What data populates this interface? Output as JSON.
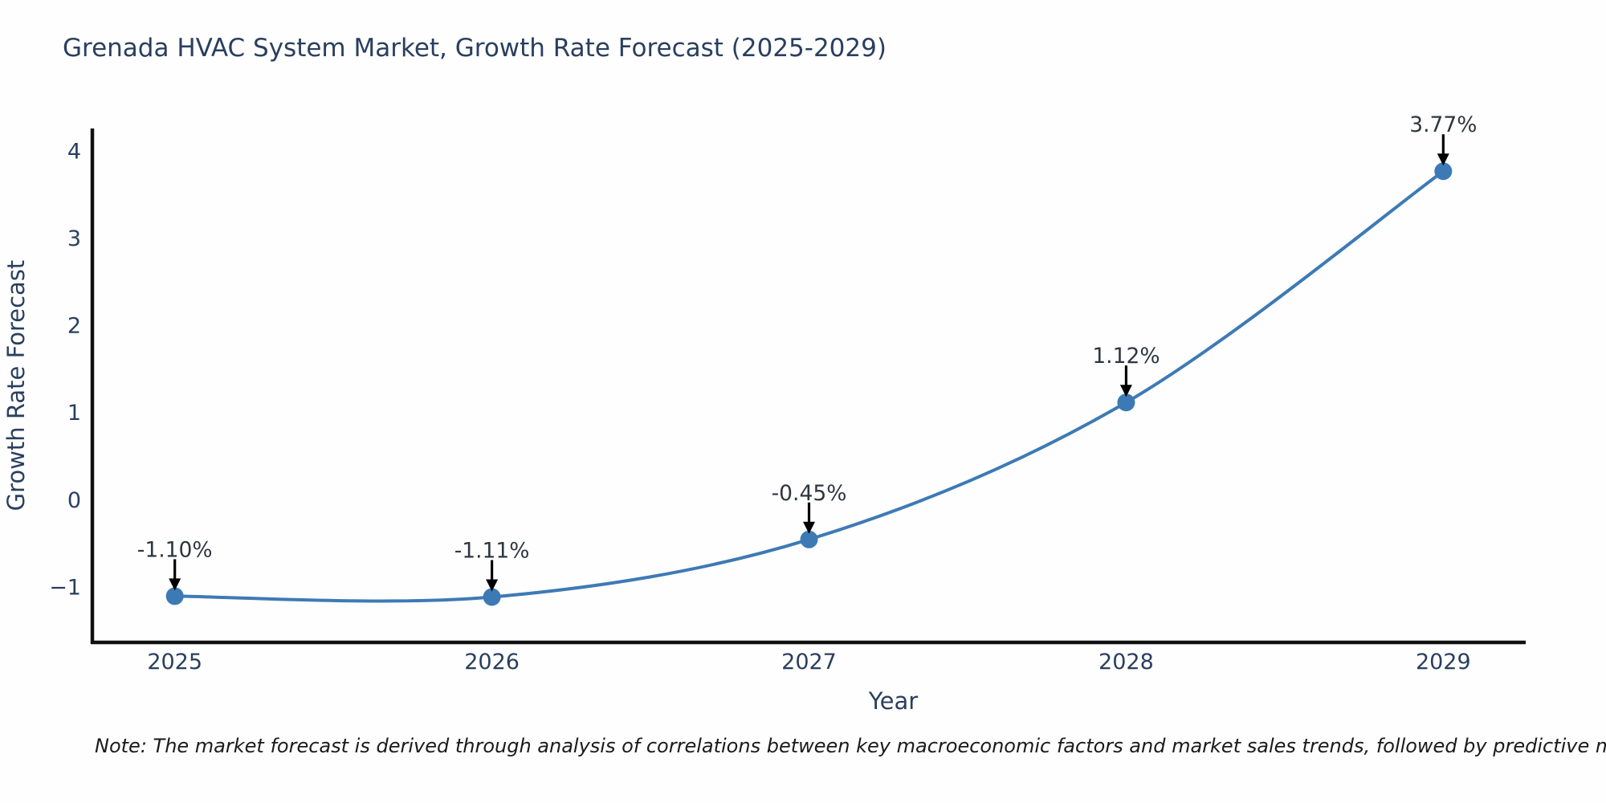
{
  "footnote": {
    "text": "Note: The market forecast is derived through analysis of correlations between key macroeconomic factors and market sales trends, followed by predictive modeling to project future sales"
  },
  "chart_data": {
    "type": "line",
    "title": "Grenada HVAC System Market, Growth Rate Forecast (2025-2029)",
    "xlabel": "Year",
    "ylabel": "Growth Rate Forecast",
    "x": [
      2025,
      2026,
      2027,
      2028,
      2029
    ],
    "categories": [
      "2025",
      "2026",
      "2027",
      "2028",
      "2029"
    ],
    "series": [
      {
        "name": "Growth Rate Forecast",
        "values": [
          -1.1,
          -1.11,
          -0.45,
          1.12,
          3.77
        ],
        "point_labels": [
          "-1.10%",
          "-1.11%",
          "-0.45%",
          "1.12%",
          "3.77%"
        ]
      }
    ],
    "y_ticks": [
      4,
      3,
      2,
      1,
      0,
      -1
    ],
    "ylim": [
      -1.63,
      4.26
    ],
    "xlim": [
      2024.74,
      2029.26
    ],
    "line_shape": "spline",
    "grid": false,
    "legend": "none",
    "annotations_style": "value labels above points with downward black arrows",
    "colors": {
      "line": "#3d7ab5",
      "marker": "#3d7ab5",
      "axis": "#111111",
      "chart_text": "#2a3f5f",
      "annotation_text": "#2f3640",
      "arrow": "#000000",
      "background": "#fefefe"
    }
  }
}
